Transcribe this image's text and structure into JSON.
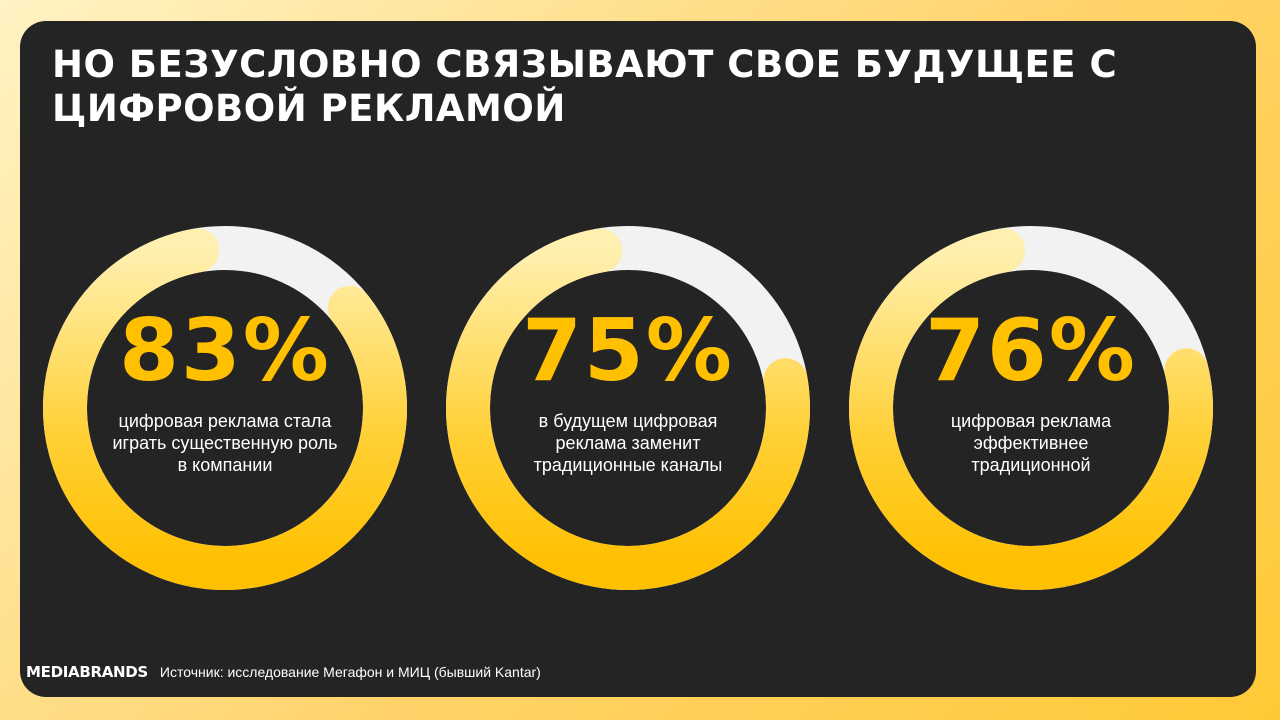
{
  "title": "НО БЕЗУСЛОВНО СВЯЗЫВАЮТ СВОЕ БУДУЩЕЕ С ЦИФРОВОЙ РЕКЛАМОЙ",
  "chart_data": [
    {
      "type": "pie",
      "value_label": "83%",
      "value": 83,
      "caption": "цифровая реклама стала играть существенную роль в компании"
    },
    {
      "type": "pie",
      "value_label": "75%",
      "value": 75,
      "caption": "в будущем цифровая реклама заменит традиционные каналы"
    },
    {
      "type": "pie",
      "value_label": "76%",
      "value": 76,
      "caption": "цифровая реклама эффективнее традиционной"
    }
  ],
  "colors": {
    "accent": "#ffc000",
    "accent_light": "#fff0b0",
    "track": "#f2f2f2",
    "panel": "#242424"
  },
  "footer": {
    "logo": "MEDIABRANDS",
    "source": "Источник: исследование Мегафон и МИЦ (бывший Kantar)"
  }
}
